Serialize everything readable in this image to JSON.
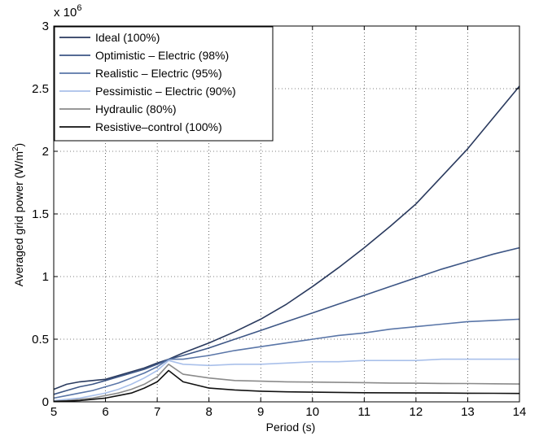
{
  "chart_data": {
    "type": "line",
    "xlabel": "Period (s)",
    "ylabel": "Averaged grid power (W/m",
    "ylabel_sup": "2",
    "ylabel_close": ")",
    "y_multiplier": "x 10",
    "y_multiplier_exp": "6",
    "xlim": [
      5,
      14
    ],
    "ylim": [
      0,
      3
    ],
    "xticks": [
      5,
      6,
      7,
      8,
      9,
      10,
      11,
      12,
      13,
      14
    ],
    "yticks": [
      0,
      0.5,
      1,
      1.5,
      2,
      2.5,
      3
    ],
    "ytick_labels": [
      "0",
      "0.5",
      "1",
      "1.5",
      "2",
      "2.5",
      "3"
    ],
    "grid": true,
    "legend_position": "top-left",
    "x": [
      5,
      5.25,
      5.5,
      5.75,
      6,
      6.25,
      6.5,
      6.75,
      7,
      7.22,
      7.5,
      8,
      8.5,
      9,
      9.5,
      10,
      10.5,
      11,
      11.5,
      12,
      12.5,
      13,
      13.5,
      14
    ],
    "series": [
      {
        "name": "Ideal (100%)",
        "color": "#2a3a5e",
        "values": [
          0.1,
          0.14,
          0.16,
          0.17,
          0.18,
          0.21,
          0.24,
          0.27,
          0.31,
          0.34,
          0.39,
          0.47,
          0.56,
          0.66,
          0.78,
          0.92,
          1.07,
          1.23,
          1.4,
          1.58,
          1.8,
          2.02,
          2.27,
          2.52
        ]
      },
      {
        "name": "Optimistic – Electric (98%)",
        "color": "#3d5685",
        "values": [
          0.06,
          0.09,
          0.12,
          0.14,
          0.17,
          0.2,
          0.23,
          0.26,
          0.3,
          0.34,
          0.37,
          0.43,
          0.5,
          0.57,
          0.64,
          0.71,
          0.78,
          0.85,
          0.92,
          0.99,
          1.06,
          1.12,
          1.18,
          1.23
        ]
      },
      {
        "name": "Realistic – Electric (95%)",
        "color": "#5a76a8",
        "values": [
          0.03,
          0.05,
          0.07,
          0.09,
          0.12,
          0.15,
          0.19,
          0.23,
          0.28,
          0.34,
          0.34,
          0.37,
          0.41,
          0.44,
          0.47,
          0.5,
          0.53,
          0.55,
          0.58,
          0.6,
          0.62,
          0.64,
          0.65,
          0.66
        ]
      },
      {
        "name": "Pessimistic – Electric (90%)",
        "color": "#a9c0ea",
        "values": [
          0.01,
          0.02,
          0.03,
          0.05,
          0.07,
          0.1,
          0.14,
          0.19,
          0.25,
          0.33,
          0.3,
          0.29,
          0.3,
          0.3,
          0.31,
          0.32,
          0.32,
          0.33,
          0.33,
          0.33,
          0.34,
          0.34,
          0.34,
          0.34
        ]
      },
      {
        "name": "Hydraulic (80%)",
        "color": "#8a8a8a",
        "values": [
          0.005,
          0.01,
          0.02,
          0.03,
          0.05,
          0.07,
          0.1,
          0.14,
          0.2,
          0.3,
          0.22,
          0.19,
          0.17,
          0.165,
          0.16,
          0.158,
          0.155,
          0.153,
          0.15,
          0.149,
          0.147,
          0.146,
          0.144,
          0.142
        ]
      },
      {
        "name": "Resistive–control (100%)",
        "color": "#111111",
        "values": [
          0.003,
          0.006,
          0.01,
          0.02,
          0.03,
          0.05,
          0.07,
          0.11,
          0.16,
          0.25,
          0.16,
          0.11,
          0.095,
          0.085,
          0.08,
          0.077,
          0.075,
          0.073,
          0.072,
          0.071,
          0.07,
          0.069,
          0.068,
          0.067
        ]
      }
    ]
  }
}
